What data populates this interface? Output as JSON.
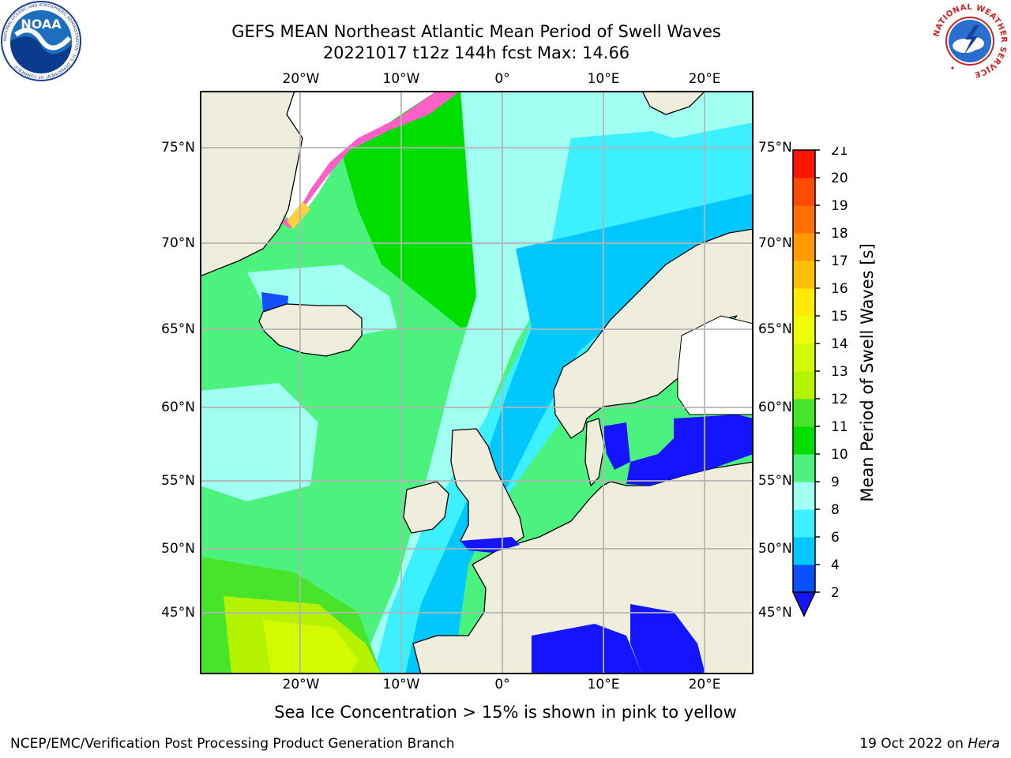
{
  "header": {
    "title_line1": "GEFS MEAN Northeast Atlantic Mean Period of Swell Waves",
    "title_line2": "20221017 t12z 144h fcst   Max: 14.66"
  },
  "logos": {
    "noaa": "NOAA",
    "noaa_ring": "NATIONAL OCEANIC AND ATMOSPHERIC ADMINISTRATION · U.S. DEPARTMENT OF COMMERCE",
    "nws_ring": "NATIONAL WEATHER SERVICE"
  },
  "map": {
    "lon_labels": [
      "20°W",
      "10°W",
      "0°",
      "10°E",
      "20°E"
    ],
    "lat_labels": [
      "75°N",
      "70°N",
      "65°N",
      "60°N",
      "55°N",
      "50°N",
      "45°N"
    ],
    "colors": {
      "land": "#efeddb",
      "no_data": "#ffffff",
      "gridline": "#b4b4b4",
      "coast": "#000000"
    }
  },
  "colorbar": {
    "title": "Mean Period of Swell Waves [s]",
    "ticks": [
      "2",
      "4",
      "6",
      "8",
      "9",
      "10",
      "11",
      "12",
      "13",
      "14",
      "15",
      "16",
      "17",
      "18",
      "19",
      "20",
      "21"
    ],
    "colors": [
      "#0a50ff",
      "#00c8ff",
      "#3cf0ff",
      "#a0fff0",
      "#4cf27e",
      "#00de00",
      "#48e42c",
      "#b4f200",
      "#d4fa00",
      "#f0ff00",
      "#ffea00",
      "#ffc000",
      "#ff9a00",
      "#ff7000",
      "#ff4a00",
      "#ff1400"
    ],
    "under_color": "#1414ff"
  },
  "caption": "Sea Ice Concentration > 15% is shown in pink to yellow",
  "footer": {
    "left": "NCEP/EMC/Verification Post Processing Product Generation Branch",
    "right_prefix": "19 Oct 2022 on ",
    "right_host": "Hera"
  }
}
